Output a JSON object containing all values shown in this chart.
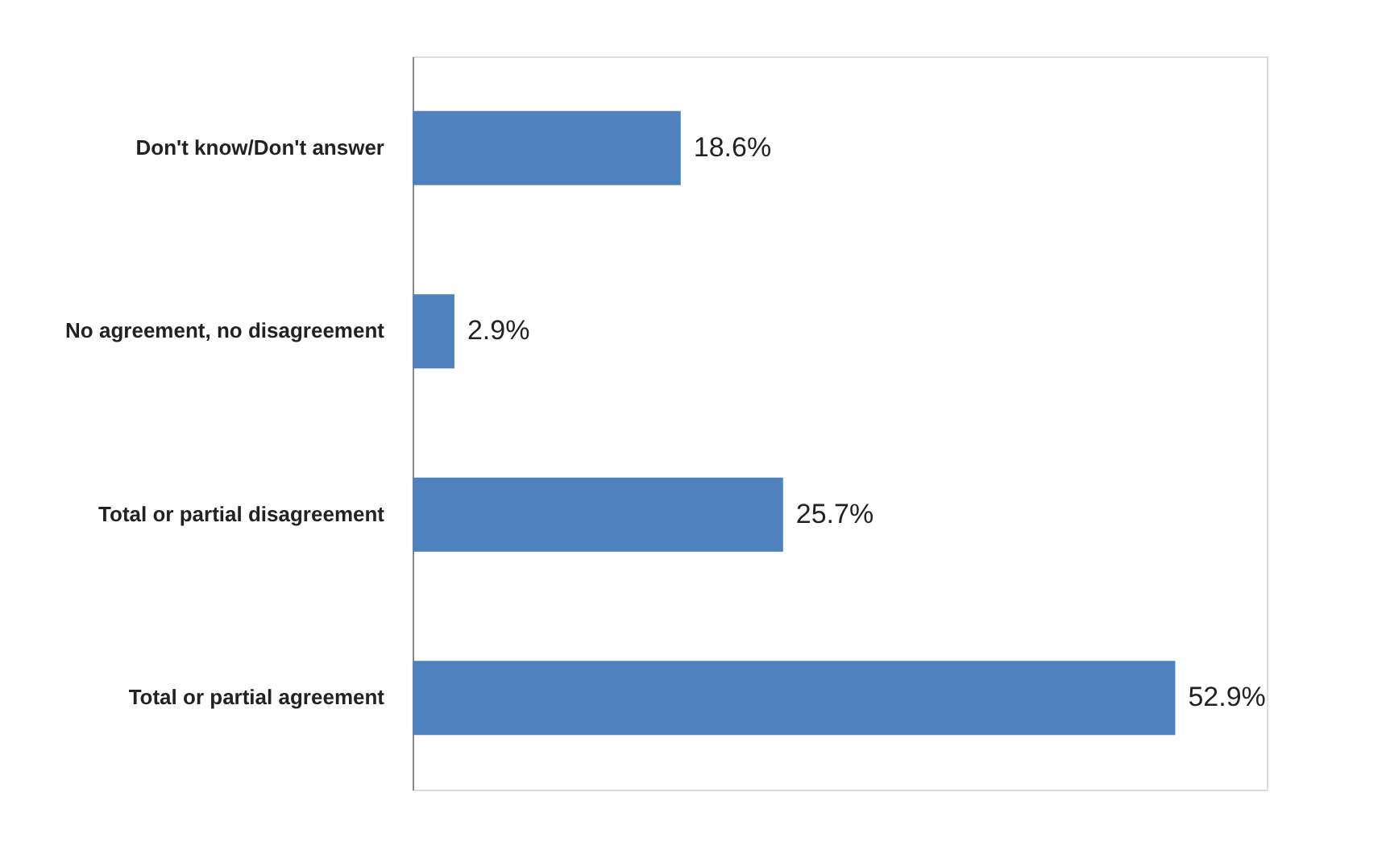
{
  "chart_data": {
    "type": "bar",
    "orientation": "horizontal",
    "categories": [
      "Don't know/Don't answer",
      "No agreement, no disagreement",
      "Total or partial disagreement",
      "Total or partial agreement"
    ],
    "values": [
      18.6,
      2.9,
      25.7,
      52.9
    ],
    "value_labels": [
      "18.6%",
      "2.9%",
      "25.7%",
      "52.9%"
    ],
    "color": "#4f81bd"
  }
}
